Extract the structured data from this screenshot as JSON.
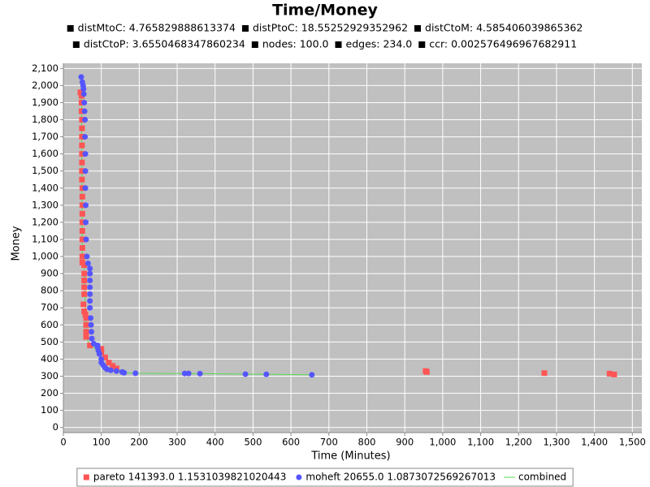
{
  "chart_data": {
    "type": "scatter",
    "title": "Time/Money",
    "subtitles": [
      "distMtoC: 4.765829888613374",
      "distPtoC: 18.55252929352962",
      "distCtoM: 4.585406039865362",
      "distCtoP: 3.6550468347860234",
      "nodes: 100.0",
      "edges: 234.0",
      "ccr: 0.002576496967682911"
    ],
    "xlabel": "Time (Minutes)",
    "ylabel": "Money",
    "xlim": [
      0,
      1525
    ],
    "ylim": [
      -30,
      2130
    ],
    "xticks": [
      0,
      100,
      200,
      300,
      400,
      500,
      600,
      700,
      800,
      900,
      {
        "value": 1000,
        "label": "1,000"
      },
      {
        "value": 1100,
        "label": "1,100"
      },
      {
        "value": 1200,
        "label": "1,200"
      },
      {
        "value": 1300,
        "label": "1,300"
      },
      {
        "value": 1400,
        "label": "1,400"
      },
      {
        "value": 1500,
        "label": "1,500"
      }
    ],
    "yticks": [
      0,
      100,
      200,
      300,
      400,
      500,
      600,
      700,
      800,
      900,
      {
        "value": 1000,
        "label": "1,000"
      },
      {
        "value": 1100,
        "label": "1,100"
      },
      {
        "value": 1200,
        "label": "1,200"
      },
      {
        "value": 1300,
        "label": "1,300"
      },
      {
        "value": 1400,
        "label": "1,400"
      },
      {
        "value": 1500,
        "label": "1,500"
      },
      {
        "value": 1600,
        "label": "1,600"
      },
      {
        "value": 1700,
        "label": "1,700"
      },
      {
        "value": 1800,
        "label": "1,800"
      },
      {
        "value": 1900,
        "label": "1,900"
      },
      {
        "value": 2000,
        "label": "2,000"
      },
      {
        "value": 2100,
        "label": "2,100"
      }
    ],
    "grid": true,
    "series": [
      {
        "name": "pareto 141393.0 1.1531039821020443",
        "color": "#ff5555",
        "marker": "square",
        "x": [
          45,
          48,
          48,
          48,
          49,
          49,
          49,
          49,
          49,
          49,
          49,
          49,
          50,
          50,
          50,
          50,
          50,
          50,
          50,
          50,
          50,
          50,
          55,
          55,
          55,
          55,
          55,
          53,
          55,
          58,
          60,
          60,
          60,
          60,
          70,
          100,
          100,
          110,
          120,
          130,
          140,
          955,
          958,
          1268,
          1440,
          1452
        ],
        "values": [
          1960,
          1940,
          1900,
          1850,
          1800,
          1750,
          1700,
          1650,
          1600,
          1550,
          1500,
          1450,
          1400,
          1350,
          1300,
          1250,
          1200,
          1150,
          1100,
          1050,
          1000,
          965,
          950,
          900,
          860,
          820,
          780,
          720,
          680,
          660,
          640,
          600,
          560,
          530,
          480,
          460,
          440,
          410,
          380,
          360,
          345,
          330,
          325,
          318,
          315,
          310
        ]
      },
      {
        "name": "moheft 20655.0 1.0873072569267013",
        "color": "#5555ff",
        "marker": "circle",
        "x": [
          47,
          50,
          52,
          53,
          54,
          55,
          56,
          57,
          57,
          58,
          58,
          58,
          59,
          59,
          60,
          62,
          65,
          70,
          70,
          70,
          70,
          70,
          70,
          70,
          72,
          73,
          74,
          75,
          80,
          90,
          90,
          92,
          95,
          100,
          100,
          105,
          110,
          115,
          125,
          140,
          155,
          160,
          190,
          320,
          330,
          360,
          480,
          535,
          655
        ],
        "values": [
          2050,
          2020,
          2000,
          1980,
          1950,
          1900,
          1850,
          1800,
          1700,
          1600,
          1500,
          1400,
          1300,
          1200,
          1100,
          1000,
          960,
          930,
          900,
          860,
          820,
          780,
          740,
          700,
          640,
          600,
          560,
          520,
          490,
          480,
          470,
          450,
          430,
          400,
          380,
          365,
          350,
          340,
          335,
          330,
          325,
          320,
          317,
          316,
          316,
          315,
          312,
          311,
          308
        ]
      },
      {
        "name": "combined",
        "color": "#55dd55",
        "marker": "line",
        "x": [
          45,
          48,
          50,
          55,
          60,
          70,
          100,
          140,
          160,
          190,
          360,
          655
        ],
        "values": [
          1960,
          1900,
          1000,
          950,
          530,
          480,
          440,
          345,
          320,
          317,
          315,
          308
        ]
      }
    ]
  }
}
